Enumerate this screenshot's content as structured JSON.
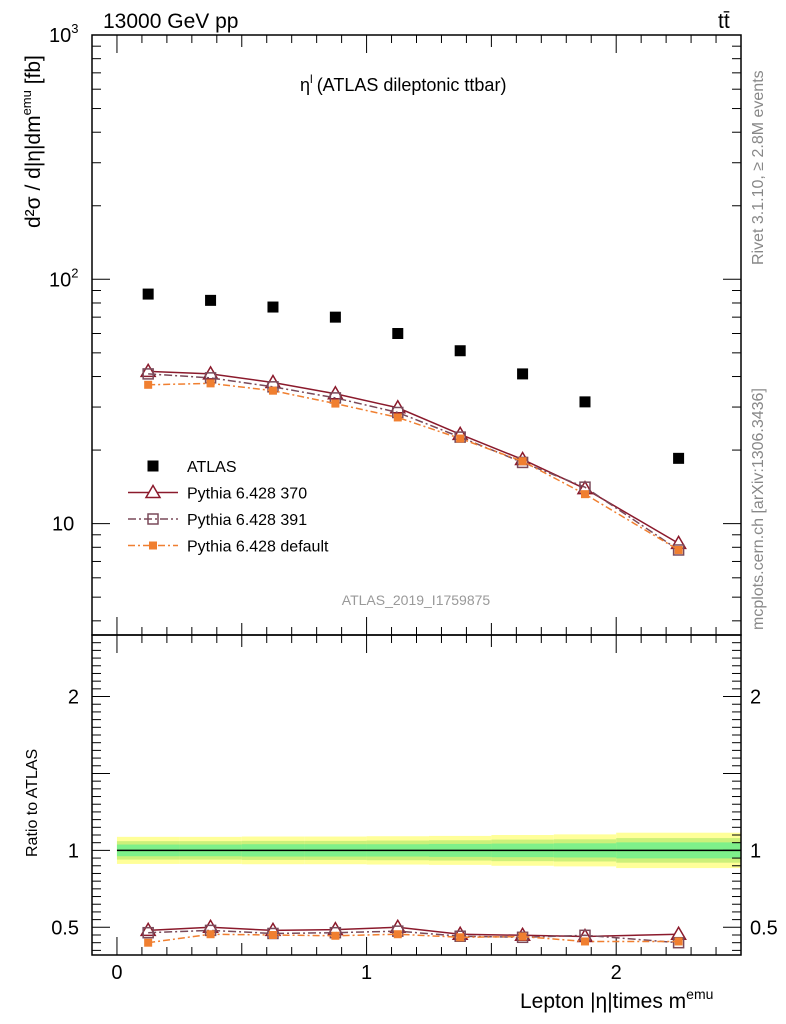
{
  "header": {
    "energy": "13000 GeV pp",
    "process": "tt̄",
    "title": "η",
    "title_sup": "l",
    "title_rest": "(ATLAS dileptonic ttbar)",
    "analysis_id": "ATLAS_2019_I1759875",
    "rivet_label": "Rivet 3.1.10, ≥ 2.8M events",
    "mcplots_label": "mcplots.cern.ch [arXiv:1306.3436]"
  },
  "axes": {
    "main_ylabel": "d²σ / d|η|dm",
    "main_ylabel_sup": "emu",
    "main_ylabel_unit": " [fb]",
    "ratio_ylabel": "Ratio to ATLAS",
    "xlabel": "Lepton |η|times m",
    "xlabel_sup": "emu",
    "main_yticks": [
      {
        "label": "10",
        "value": 10
      },
      {
        "label": "10",
        "sup": "2",
        "value": 100
      },
      {
        "label": "10",
        "sup": "3",
        "value": 1000
      }
    ],
    "ratio_yticks": [
      "0.5",
      "1",
      "2"
    ],
    "xticks": [
      "0",
      "1",
      "2"
    ]
  },
  "colors": {
    "atlas": "#000000",
    "p370": "#8b1a2c",
    "p391": "#7a4a5a",
    "pdefault": "#f07f30",
    "band_outer": "#ffff99",
    "band_mid": "#ccf07a",
    "band_inner": "#7ef08a"
  },
  "chart_data": {
    "type": "scatter",
    "main": {
      "ylog": true,
      "ylim": [
        3.5,
        1000
      ],
      "xlim": [
        -0.1,
        2.5
      ],
      "x": [
        0.125,
        0.375,
        0.625,
        0.875,
        1.125,
        1.375,
        1.625,
        1.875,
        2.25
      ],
      "series": [
        {
          "name": "ATLAS",
          "style": "atlas",
          "values": [
            87,
            82,
            77,
            70,
            60,
            51,
            41,
            31.5,
            18.5
          ]
        },
        {
          "name": "Pythia 6.428 370",
          "style": "p370",
          "values": [
            42,
            41,
            37.8,
            34,
            29.8,
            23.2,
            18.3,
            13.9,
            8.3
          ]
        },
        {
          "name": "Pythia 6.428 391",
          "style": "p391",
          "values": [
            41,
            39.5,
            36.3,
            32.7,
            28.5,
            22.6,
            17.8,
            14.1,
            7.8
          ]
        },
        {
          "name": "Pythia 6.428 default",
          "style": "pdefault",
          "values": [
            37,
            37.5,
            35,
            31,
            27.2,
            22.3,
            18,
            13.2,
            7.8
          ]
        }
      ]
    },
    "ratio": {
      "ylim": [
        0.32,
        2.4
      ],
      "x": [
        0.125,
        0.375,
        0.625,
        0.875,
        1.125,
        1.375,
        1.625,
        1.875,
        2.25
      ],
      "series": [
        {
          "name": "Pythia 6.428 370",
          "style": "p370",
          "values": [
            0.48,
            0.5,
            0.48,
            0.485,
            0.5,
            0.455,
            0.448,
            0.44,
            0.455
          ]
        },
        {
          "name": "Pythia 6.428 391",
          "style": "p391",
          "values": [
            0.465,
            0.48,
            0.46,
            0.465,
            0.475,
            0.442,
            0.435,
            0.448,
            0.4
          ]
        },
        {
          "name": "Pythia 6.428 default",
          "style": "pdefault",
          "values": [
            0.4,
            0.455,
            0.45,
            0.445,
            0.455,
            0.435,
            0.44,
            0.408,
            0.408
          ]
        }
      ],
      "band_edges": [
        0,
        0.25,
        0.5,
        0.75,
        1.0,
        1.25,
        1.5,
        1.75,
        2.0,
        2.5
      ],
      "band_outer": [
        0.088,
        0.088,
        0.09,
        0.09,
        0.092,
        0.094,
        0.1,
        0.104,
        0.115
      ],
      "band_mid": [
        0.06,
        0.06,
        0.062,
        0.062,
        0.064,
        0.066,
        0.07,
        0.072,
        0.08
      ],
      "band_inner": [
        0.038,
        0.038,
        0.04,
        0.04,
        0.04,
        0.042,
        0.044,
        0.046,
        0.052
      ]
    }
  }
}
